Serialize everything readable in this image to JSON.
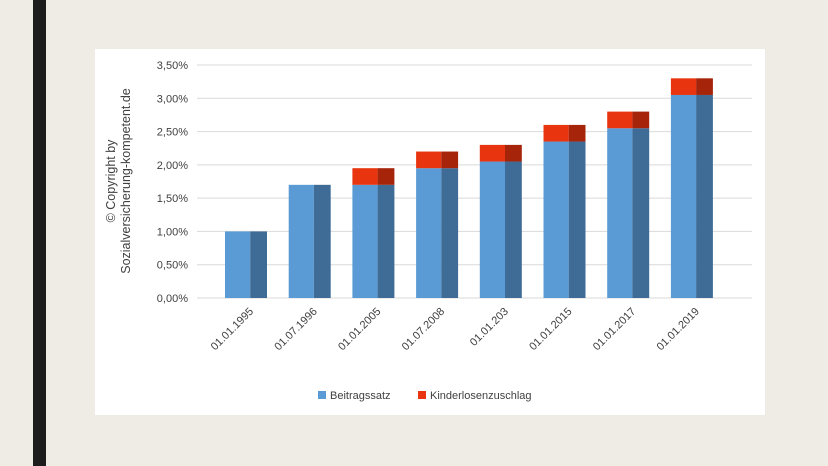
{
  "colors": {
    "series1": "#5b9bd5",
    "series1_dark": "#3e6c97",
    "series2": "#e8340f",
    "series2_dark": "#a5240a",
    "grid": "#d9d9d9",
    "frame": "#1d1d1d",
    "background": "#efebe5"
  },
  "chart_data": {
    "type": "bar",
    "stacked": true,
    "title": "",
    "xlabel": "",
    "ylabel_lines": [
      "© Copyright by",
      "Sozialversicherung-kompetent.de"
    ],
    "categories": [
      "01.01.1995",
      "01.07.1996",
      "01.01.2005",
      "01.07.2008",
      "01.01.203",
      "01.01.2015",
      "01.01.2017",
      "01.01.2019"
    ],
    "series": [
      {
        "name": "Beitragssatz",
        "values": [
          1.0,
          1.7,
          1.7,
          1.95,
          2.05,
          2.35,
          2.55,
          3.05
        ]
      },
      {
        "name": "Kinderlosenzuschlag",
        "values": [
          0,
          0,
          0.25,
          0.25,
          0.25,
          0.25,
          0.25,
          0.25
        ]
      }
    ],
    "ylim": [
      0,
      3.5
    ],
    "yticks": [
      "0,00%",
      "0,50%",
      "1,00%",
      "1,50%",
      "2,00%",
      "2,50%",
      "3,00%",
      "3,50%"
    ],
    "grid": true,
    "legend_position": "bottom"
  }
}
